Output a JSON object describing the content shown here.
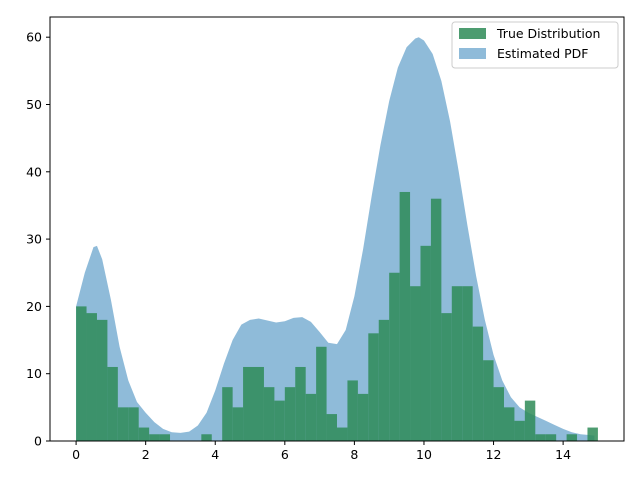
{
  "chart_data": {
    "type": "area",
    "title": "",
    "xlabel": "",
    "ylabel": "",
    "xlim": [
      -0.75,
      15.75
    ],
    "ylim": [
      0,
      63
    ],
    "xticks": [
      0,
      2,
      4,
      6,
      8,
      10,
      12,
      14
    ],
    "yticks": [
      0,
      10,
      20,
      30,
      40,
      50,
      60
    ],
    "grid": false,
    "legend": {
      "placement": "top-right",
      "entries": [
        "True Distribution",
        "Estimated PDF"
      ]
    },
    "colors": {
      "histogram": "#2e8b57",
      "pdf_fill": "#1f77b4"
    },
    "series": [
      {
        "name": "Estimated PDF",
        "kind": "filled-curve",
        "x": [
          0,
          0.25,
          0.5,
          0.6,
          0.75,
          1.0,
          1.25,
          1.5,
          1.75,
          2.0,
          2.25,
          2.5,
          2.75,
          3.0,
          3.25,
          3.5,
          3.75,
          4.0,
          4.25,
          4.5,
          4.75,
          5.0,
          5.25,
          5.5,
          5.75,
          6.0,
          6.25,
          6.5,
          6.75,
          7.0,
          7.25,
          7.5,
          7.75,
          8.0,
          8.25,
          8.5,
          8.75,
          9.0,
          9.25,
          9.5,
          9.75,
          9.85,
          10.0,
          10.25,
          10.5,
          10.75,
          11.0,
          11.25,
          11.5,
          11.75,
          12.0,
          12.25,
          12.5,
          12.75,
          13.0,
          13.25,
          13.5,
          13.75,
          14.0,
          14.25,
          14.5,
          14.75,
          14.9
        ],
        "y": [
          20,
          25,
          28.8,
          29,
          27,
          21,
          14,
          9,
          5.8,
          4.2,
          2.8,
          1.8,
          1.3,
          1.2,
          1.4,
          2.3,
          4.2,
          7.5,
          11.5,
          15,
          17.3,
          18,
          18.2,
          17.9,
          17.6,
          17.8,
          18.3,
          18.4,
          17.7,
          16.2,
          14.6,
          14.4,
          16.5,
          21.5,
          28.5,
          36.5,
          44,
          50.5,
          55.5,
          58.5,
          59.8,
          60,
          59.5,
          57.5,
          53.5,
          47.5,
          40,
          32,
          24.5,
          18,
          12.8,
          9,
          6.5,
          5,
          4.2,
          3.6,
          3,
          2.4,
          1.8,
          1.3,
          1,
          0.9,
          0.8
        ]
      },
      {
        "name": "True Distribution",
        "kind": "histogram",
        "bin_start": 0,
        "bin_width": 0.3,
        "counts": [
          20,
          19,
          18,
          11,
          5,
          5,
          2,
          1,
          1,
          0,
          0,
          0,
          1,
          0,
          8,
          5,
          11,
          11,
          8,
          6,
          8,
          11,
          7,
          14,
          4,
          2,
          9,
          7,
          16,
          18,
          25,
          37,
          23,
          29,
          36,
          19,
          23,
          23,
          17,
          12,
          8,
          5,
          3,
          6,
          1,
          1,
          0,
          1,
          0,
          2
        ]
      }
    ]
  }
}
